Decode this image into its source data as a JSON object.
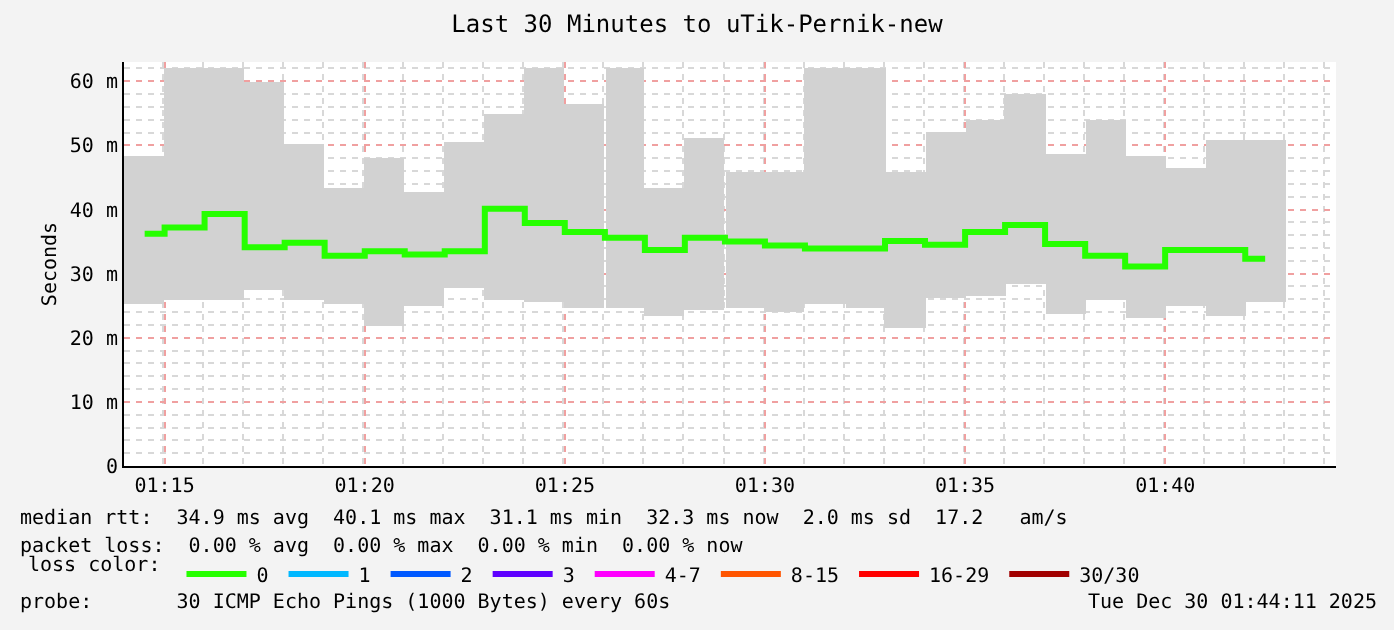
{
  "chart_data": {
    "type": "step",
    "title": "Last 30 Minutes to uTik-Pernik-new",
    "ylabel": "Seconds",
    "legend_title": "loss color:",
    "legend": "bottom",
    "x": [
      1.2417,
      1.2583,
      1.275,
      1.2917,
      1.3083,
      1.325,
      1.3417,
      1.3583,
      1.375,
      1.3917,
      1.4083,
      1.425,
      1.4417,
      1.4583,
      1.475,
      1.4917,
      1.5083,
      1.525,
      1.5417,
      1.5583,
      1.575,
      1.5917,
      1.6083,
      1.625,
      1.6417,
      1.6583,
      1.675,
      1.6917,
      1.7083
    ],
    "xlim": [
      1.2331,
      1.7378
    ],
    "xticks": [
      {
        "value": 1.25,
        "label": "01:15"
      },
      {
        "value": 1.3333,
        "label": "01:20"
      },
      {
        "value": 1.4167,
        "label": "01:25"
      },
      {
        "value": 1.5,
        "label": "01:30"
      },
      {
        "value": 1.5833,
        "label": "01:35"
      },
      {
        "value": 1.6667,
        "label": "01:40"
      }
    ],
    "ylim": [
      0,
      63
    ],
    "yticks": [
      0,
      {
        "value": 10,
        "label": "10 m"
      },
      {
        "value": 20,
        "label": "20 m"
      },
      {
        "value": 30,
        "label": "30 m"
      },
      {
        "value": 40,
        "label": "40 m"
      },
      {
        "value": 50,
        "label": "50 m"
      },
      {
        "value": 60,
        "label": "60 m"
      }
    ],
    "grid": true,
    "series": [
      {
        "type": "bar",
        "color": "#d2d2d2",
        "base": [
          25.4,
          25.9,
          25.9,
          27.4,
          25.9,
          25.4,
          21.9,
          24.8,
          27.9,
          25.9,
          25.6,
          24.5,
          24.6,
          23.3,
          24.3,
          24.5,
          24.0,
          25.4,
          24.5,
          21.4,
          26.1,
          26.4,
          28.5,
          23.8,
          25.9,
          23.0,
          25.0,
          23.5,
          25.6
        ],
        "values": [
          22.9,
          36.1,
          36.1,
          32.6,
          24.3,
          18.1,
          26.2,
          17.9,
          22.5,
          28.9,
          36.4,
          32.1,
          37.4,
          20.2,
          26.7,
          21.5,
          22.0,
          36.6,
          37.5,
          24.4,
          26.1,
          27.6,
          29.4,
          24.8,
          28.1,
          25.3,
          21.6,
          27.2,
          25.1
        ]
      },
      {
        "name": "0",
        "color": "#26ff00",
        "values": [
          36.2,
          37.2,
          39.3,
          34.1,
          34.8,
          32.8,
          33.5,
          33.0,
          33.5,
          40.1,
          37.9,
          36.5,
          35.6,
          33.7,
          35.6,
          35.0,
          34.4,
          33.9,
          33.9,
          35.1,
          34.5,
          36.5,
          37.6,
          34.6,
          32.8,
          31.1,
          33.7,
          33.7,
          32.3
        ]
      },
      {
        "type": "line",
        "name": "1",
        "color": "#00b8ff",
        "values": [
          null,
          null,
          null,
          null,
          null,
          null,
          null,
          null,
          null,
          null,
          null,
          null,
          null,
          null,
          null,
          null,
          null,
          null,
          null,
          null,
          null,
          null,
          null,
          null,
          null,
          null,
          null,
          null,
          null
        ]
      },
      {
        "type": "line",
        "name": "2",
        "color": "#0059ff",
        "values": [
          null,
          null,
          null,
          null,
          null,
          null,
          null,
          null,
          null,
          null,
          null,
          null,
          null,
          null,
          null,
          null,
          null,
          null,
          null,
          null,
          null,
          null,
          null,
          null,
          null,
          null,
          null,
          null,
          null
        ]
      },
      {
        "type": "line",
        "name": "3",
        "color": "#5e00ff",
        "values": [
          null,
          null,
          null,
          null,
          null,
          null,
          null,
          null,
          null,
          null,
          null,
          null,
          null,
          null,
          null,
          null,
          null,
          null,
          null,
          null,
          null,
          null,
          null,
          null,
          null,
          null,
          null,
          null,
          null
        ]
      },
      {
        "type": "line",
        "name": "4-7",
        "color": "#ff00ff",
        "values": [
          null,
          null,
          null,
          null,
          null,
          null,
          null,
          null,
          null,
          null,
          null,
          null,
          null,
          null,
          null,
          null,
          null,
          null,
          null,
          null,
          null,
          null,
          null,
          null,
          null,
          null,
          null,
          null,
          null
        ]
      },
      {
        "type": "line",
        "name": "8-15",
        "color": "#ff5500",
        "values": [
          null,
          null,
          null,
          null,
          null,
          null,
          null,
          null,
          null,
          null,
          null,
          null,
          null,
          null,
          null,
          null,
          null,
          null,
          null,
          null,
          null,
          null,
          null,
          null,
          null,
          null,
          null,
          null,
          null
        ]
      },
      {
        "type": "line",
        "name": "16-29",
        "color": "#ff0000",
        "values": [
          null,
          null,
          null,
          null,
          null,
          null,
          null,
          null,
          null,
          null,
          null,
          null,
          null,
          null,
          null,
          null,
          null,
          null,
          null,
          null,
          null,
          null,
          null,
          null,
          null,
          null,
          null,
          null,
          null
        ]
      },
      {
        "type": "line",
        "name": "30/30",
        "color": "#a10000",
        "values": [
          null,
          null,
          null,
          null,
          null,
          null,
          null,
          null,
          null,
          null,
          null,
          null,
          null,
          null,
          null,
          null,
          null,
          null,
          null,
          null,
          null,
          null,
          null,
          null,
          null,
          null,
          null,
          null,
          null
        ]
      }
    ],
    "annotations": [
      "median rtt:  34.9 ms avg  40.1 ms max  31.1 ms min  32.3 ms now  2.0 ms sd  17.2   am/s",
      "packet loss:  0.00 % avg  0.00 % max  0.00 % min  0.00 % now",
      "probe:       30 ICMP Echo Pings (1000 Bytes) every 60s",
      "Tue Dec 30 01:44:11 2025"
    ]
  }
}
